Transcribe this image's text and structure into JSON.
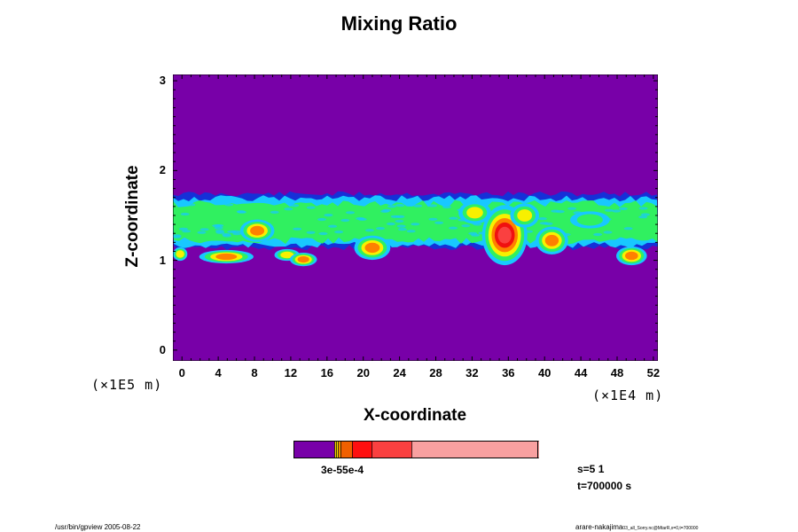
{
  "chart_data": {
    "type": "heatmap",
    "title": "Mixing Ratio",
    "xlabel": "X-coordinate",
    "ylabel": "Z-coordinate",
    "x_ticks": [
      "0",
      "4",
      "8",
      "12",
      "16",
      "20",
      "24",
      "28",
      "32",
      "36",
      "40",
      "44",
      "48",
      "52"
    ],
    "y_ticks": [
      "0",
      "1",
      "2",
      "3"
    ],
    "xlim": [
      -1,
      52.5
    ],
    "ylim": [
      -0.12,
      3.07
    ],
    "x_unit": "(×1E4 m)",
    "y_unit": "(×1E5 m)",
    "colorbar_label": "3e-55e-4",
    "colors": {
      "background": "#7800a8",
      "edge_blue": "#1530d8",
      "cyan": "#18c8ff",
      "green": "#30f060",
      "yellow": "#f8f000",
      "orange": "#ff8000",
      "red": "#f01010",
      "salmon": "#fa4040",
      "pink": "#f8a0a0"
    },
    "colorbar_colors": [
      "#7800a8",
      "#f4d000",
      "#f09000",
      "#f06000",
      "#ff1010",
      "#fa4040",
      "#f8a0a0"
    ],
    "layer": {
      "top_z": 1.72,
      "bottom_z": 1.18
    },
    "cells": [
      {
        "x": 8.3,
        "z": 1.33,
        "rx": 1.7,
        "rz": 0.11,
        "level": 4
      },
      {
        "x": 4.9,
        "z": 1.04,
        "rx": 2.8,
        "rz": 0.06,
        "level": 4
      },
      {
        "x": 11.6,
        "z": 1.06,
        "rx": 1.2,
        "rz": 0.05,
        "level": 3
      },
      {
        "x": 13.4,
        "z": 1.01,
        "rx": 1.3,
        "rz": 0.06,
        "level": 4
      },
      {
        "x": -0.2,
        "z": 1.07,
        "rx": 0.6,
        "rz": 0.06,
        "level": 3
      },
      {
        "x": 21.0,
        "z": 1.14,
        "rx": 1.8,
        "rz": 0.12,
        "level": 4
      },
      {
        "x": 32.3,
        "z": 1.53,
        "rx": 1.6,
        "rz": 0.11,
        "level": 3
      },
      {
        "x": 35.6,
        "z": 1.28,
        "rx": 2.3,
        "rz": 0.32,
        "level": 6
      },
      {
        "x": 37.8,
        "z": 1.5,
        "rx": 1.4,
        "rz": 0.12,
        "level": 3
      },
      {
        "x": 40.8,
        "z": 1.22,
        "rx": 1.6,
        "rz": 0.14,
        "level": 4
      },
      {
        "x": 49.6,
        "z": 1.05,
        "rx": 1.5,
        "rz": 0.09,
        "level": 4
      },
      {
        "x": 45.0,
        "z": 1.45,
        "rx": 2.0,
        "rz": 0.08,
        "level": 2
      }
    ],
    "info_s": "s=5 1",
    "info_t": "t=700000 s"
  },
  "footer": {
    "left": "/usr/bin/gpview 2005-08-22",
    "right_name": "arare-nakajima",
    "right_small": "03_all_Sorry.nc@MtarR,x=0,t=700000"
  }
}
